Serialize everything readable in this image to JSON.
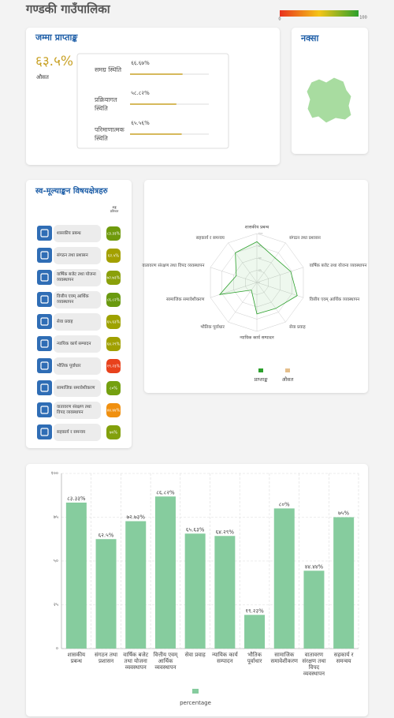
{
  "header": {
    "title": "गण्डकी गाउँपालिका",
    "scale_min": "0",
    "scale_max": "100",
    "scale_colors": [
      "#e8321e",
      "#f5c518",
      "#2ca02c"
    ]
  },
  "summary": {
    "title": "जम्मा प्राप्ताङ्क",
    "score": "६३.५%",
    "score_label": "औसत",
    "color": "#c9a227",
    "items": [
      {
        "label": "समग्र स्थिति",
        "value": 66.67,
        "value_label": "६६.६७%"
      },
      {
        "label": "प्रक्रियागत स्थिति",
        "value": 58.82,
        "value_label": "५८.८२%"
      },
      {
        "label": "परिमाणात्मक स्थिति",
        "value": 65.56,
        "value_label": "६५.५६%"
      }
    ]
  },
  "map": {
    "title": "नक्सा"
  },
  "domains": {
    "title": "स्व-मूल्याङ्कन विषयक्षेत्रहरु",
    "column_header": "अङ्क प्रतिशत",
    "badge_colors": [
      "#6f9a0c",
      "#a3a000",
      "#8aa00a",
      "#6a9a10",
      "#9ea200",
      "#a0a000",
      "#e8421c",
      "#74a010",
      "#f09010",
      "#82a00c"
    ]
  },
  "chart_data": [
    {
      "type": "radar",
      "categories": [
        "शासकीय प्रबन्ध",
        "संगठन तथा प्रशासन",
        "वार्षिक बजेट तथा योजना व्यवस्थापन",
        "वित्तीय एवम् आर्थिक व्यवस्थापन",
        "सेवा प्रवाह",
        "न्यायिक कार्य सम्पादन",
        "भौतिक पूर्वाधार",
        "सामाजिक समावेशीकरण",
        "वातावरण संरक्षण तथा विपद व्यवस्थापन",
        "सहकार्य र समन्वय"
      ],
      "series": [
        {
          "name": "प्राप्ताङ्क",
          "color": "#2ca02c",
          "values": [
            83.33,
            62.5,
            72.73,
            86.82,
            65.63,
            64.29,
            19.23,
            80,
            44.44,
            75
          ]
        },
        {
          "name": "औसत",
          "color": "#e5bf8c",
          "values": [
            null,
            null,
            null,
            null,
            null,
            null,
            null,
            null,
            null,
            null
          ]
        }
      ],
      "rlim": [
        0,
        100
      ],
      "rticks": [
        {
          "value": 0,
          "label": "०"
        },
        {
          "value": 25,
          "label": "२५"
        },
        {
          "value": 50,
          "label": "५०"
        },
        {
          "value": 75,
          "label": "७५"
        },
        {
          "value": 100,
          "label": "१००"
        }
      ]
    },
    {
      "type": "bar",
      "categories": [
        "शासकीय प्रबन्ध",
        "संगठन तथा प्रशासन",
        "वार्षिक बजेट तथा योजना व्यवस्थापन",
        "वित्तीय एवम् आर्थिक व्यवस्थापन",
        "सेवा प्रवाह",
        "न्यायिक कार्य सम्पादन",
        "भौतिक पूर्वाधार",
        "सामाजिक समावेशीकरण",
        "वातावरण संरक्षण तथा विपद व्यवस्थापन",
        "सहकार्य र समन्वय"
      ],
      "series": [
        {
          "name": "percentage",
          "color": "#86cc9e",
          "values": [
            83.33,
            62.5,
            72.73,
            86.82,
            65.63,
            64.29,
            19.23,
            80,
            44.44,
            75
          ],
          "value_labels": [
            "८३.३३%",
            "६२.५%",
            "७२.७३%",
            "८६.८२%",
            "६५.६३%",
            "६४.२९%",
            "१९.२३%",
            "८०%",
            "४४.४४%",
            "७५%"
          ]
        }
      ],
      "ylim": [
        0,
        100
      ],
      "yticks": [
        {
          "value": 0,
          "label": "०"
        },
        {
          "value": 25,
          "label": "२५"
        },
        {
          "value": 50,
          "label": "५०"
        },
        {
          "value": 75,
          "label": "७५"
        },
        {
          "value": 100,
          "label": "१००"
        }
      ],
      "grid": true
    }
  ]
}
